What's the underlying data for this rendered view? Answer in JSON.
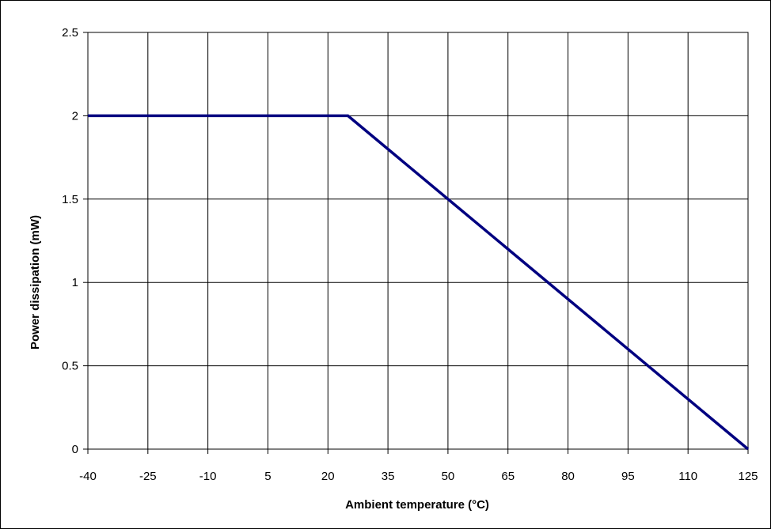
{
  "chart_data": {
    "type": "line",
    "title": "",
    "xlabel": "Ambient temperature (°C)",
    "ylabel": "Power dissipation (mW)",
    "xlim": [
      -40,
      125
    ],
    "ylim": [
      0,
      2.5
    ],
    "x_ticks": [
      "-40",
      "-25",
      "-10",
      "5",
      "20",
      "35",
      "50",
      "65",
      "80",
      "95",
      "110",
      "125"
    ],
    "y_ticks": [
      "0",
      "0.5",
      "1",
      "1.5",
      "2",
      "2.5"
    ],
    "grid": true,
    "legend": "none",
    "series": [
      {
        "color": "#000080",
        "x": [
          -40,
          25,
          125
        ],
        "y": [
          2,
          2,
          0
        ]
      }
    ]
  }
}
